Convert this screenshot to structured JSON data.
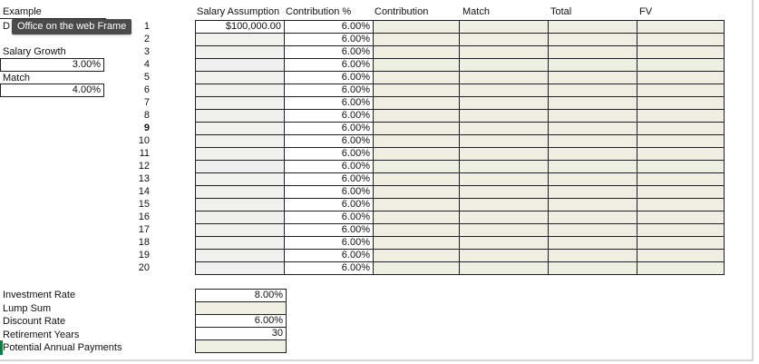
{
  "tooltip": {
    "text": "Office on the web Frame"
  },
  "left_panel": {
    "example_label": "Example",
    "partial_label": "D",
    "salary_growth_label": "Salary Growth",
    "salary_growth_value": "3.00%",
    "match_label": "Match",
    "match_value": "4.00%"
  },
  "table": {
    "headers": [
      "Salary Assumption",
      "Contribution %",
      "Contribution",
      "Match",
      "Total",
      "FV"
    ],
    "rows": [
      {
        "num": "1",
        "salary": "$100,000.00",
        "contribution_pct": "6.00%",
        "bold": false
      },
      {
        "num": "2",
        "salary": "",
        "contribution_pct": "6.00%",
        "bold": false
      },
      {
        "num": "3",
        "salary": "",
        "contribution_pct": "6.00%",
        "bold": false
      },
      {
        "num": "4",
        "salary": "",
        "contribution_pct": "6.00%",
        "bold": false
      },
      {
        "num": "5",
        "salary": "",
        "contribution_pct": "6.00%",
        "bold": false
      },
      {
        "num": "6",
        "salary": "",
        "contribution_pct": "6.00%",
        "bold": false
      },
      {
        "num": "7",
        "salary": "",
        "contribution_pct": "6.00%",
        "bold": false
      },
      {
        "num": "8",
        "salary": "",
        "contribution_pct": "6.00%",
        "bold": false
      },
      {
        "num": "9",
        "salary": "",
        "contribution_pct": "6.00%",
        "bold": true
      },
      {
        "num": "10",
        "salary": "",
        "contribution_pct": "6.00%",
        "bold": false
      },
      {
        "num": "11",
        "salary": "",
        "contribution_pct": "6.00%",
        "bold": false
      },
      {
        "num": "12",
        "salary": "",
        "contribution_pct": "6.00%",
        "bold": false
      },
      {
        "num": "13",
        "salary": "",
        "contribution_pct": "6.00%",
        "bold": false
      },
      {
        "num": "14",
        "salary": "",
        "contribution_pct": "6.00%",
        "bold": false
      },
      {
        "num": "15",
        "salary": "",
        "contribution_pct": "6.00%",
        "bold": false
      },
      {
        "num": "16",
        "salary": "",
        "contribution_pct": "6.00%",
        "bold": false
      },
      {
        "num": "17",
        "salary": "",
        "contribution_pct": "6.00%",
        "bold": false
      },
      {
        "num": "18",
        "salary": "",
        "contribution_pct": "6.00%",
        "bold": false
      },
      {
        "num": "19",
        "salary": "",
        "contribution_pct": "6.00%",
        "bold": false
      },
      {
        "num": "20",
        "salary": "",
        "contribution_pct": "6.00%",
        "bold": false
      }
    ]
  },
  "bottom_panel": {
    "rows": [
      {
        "label": "Investment Rate",
        "value": "8.00%",
        "filled": true
      },
      {
        "label": "Lump Sum",
        "value": "",
        "filled": false
      },
      {
        "label": "Discount Rate",
        "value": "6.00%",
        "filled": true
      },
      {
        "label": "Retirement Years",
        "value": "30",
        "filled": true
      },
      {
        "label": "Potential Annual Payments",
        "value": "",
        "filled": false
      }
    ]
  },
  "colors": {
    "grid_border": "#202020",
    "beige_cell": "#eeeee1",
    "gray_cell": "#f0f0ef",
    "tooltip_bg": "#4b4b4b",
    "active_cell_green": "#107c41",
    "frame_line": "#d5d5d5"
  }
}
